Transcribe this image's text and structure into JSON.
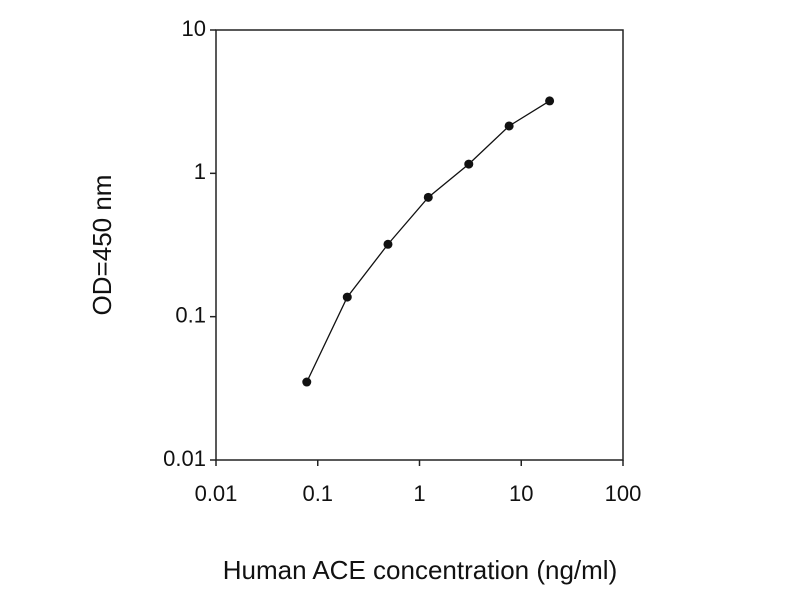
{
  "chart_data": {
    "type": "line",
    "x_label": "Human ACE concentration (ng/ml)",
    "y_label": "OD=450 nm",
    "x": [
      0.078,
      0.195,
      0.49,
      1.22,
      3.05,
      7.6,
      19
    ],
    "series": [
      {
        "color": "#111111",
        "values": [
          0.035,
          0.137,
          0.32,
          0.68,
          1.16,
          2.14,
          3.2
        ]
      }
    ],
    "xlim": [
      0.01,
      100
    ],
    "xticks": [
      0.01,
      0.1,
      1,
      10,
      100
    ],
    "ylim": [
      0.01,
      10
    ],
    "yticks": [
      0.01,
      0.1,
      1,
      10
    ],
    "xscale": "log",
    "yscale": "log",
    "grid": false
  }
}
